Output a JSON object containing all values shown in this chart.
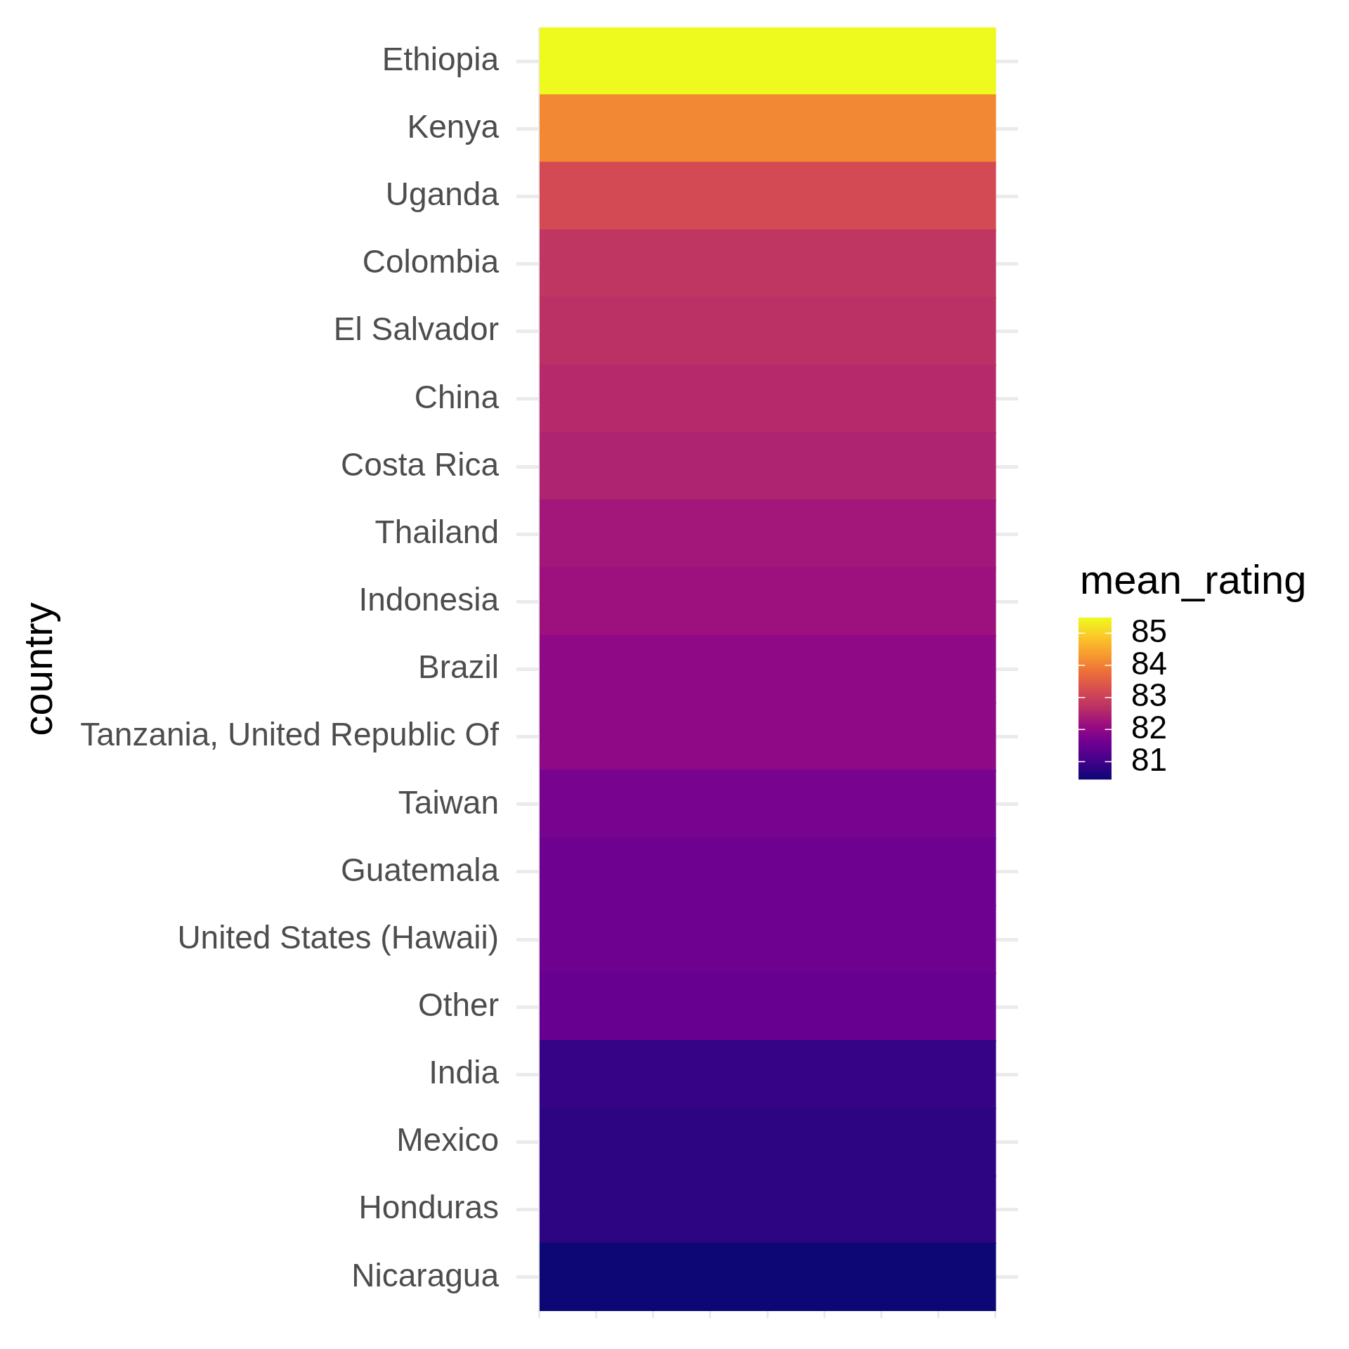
{
  "chart_data": {
    "type": "heatmap",
    "ylabel": "country",
    "clabel": "mean_rating",
    "categories": [
      null
    ],
    "y_categories": [
      "Ethiopia",
      "Kenya",
      "Uganda",
      "Colombia",
      "El Salvador",
      "China",
      "Costa Rica",
      "Thailand",
      "Indonesia",
      "Brazil",
      "Tanzania, United Republic Of",
      "Taiwan",
      "Guatemala",
      "United States (Hawaii)",
      "Other",
      "India",
      "Mexico",
      "Honduras",
      "Nicaragua"
    ],
    "cells": [
      [
        85.49
      ],
      [
        84.1
      ],
      [
        83.2
      ],
      [
        82.8
      ],
      [
        82.7
      ],
      [
        82.6
      ],
      [
        82.5
      ],
      [
        82.3
      ],
      [
        82.2
      ],
      [
        82.0
      ],
      [
        82.0
      ],
      [
        81.7
      ],
      [
        81.6
      ],
      [
        81.6
      ],
      [
        81.5
      ],
      [
        80.9
      ],
      [
        80.8
      ],
      [
        80.8
      ],
      [
        80.45
      ]
    ],
    "clim": [
      80.45,
      85.49
    ],
    "cticks": [
      81,
      82,
      83,
      84,
      85
    ],
    "grid": true,
    "tick_labels": "y"
  }
}
